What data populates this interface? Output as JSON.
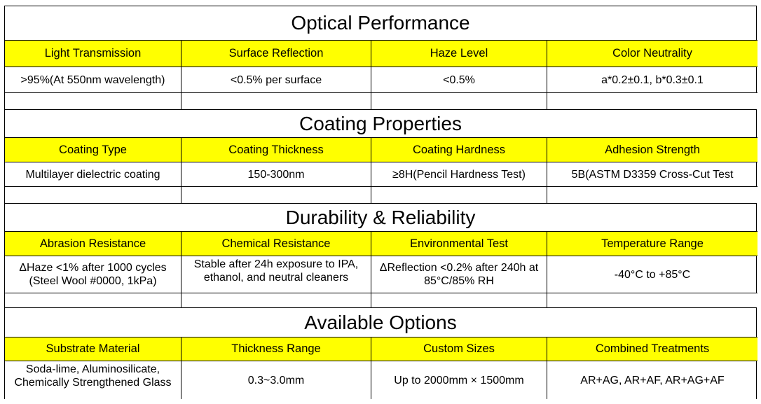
{
  "sections": [
    {
      "title": "Optical Performance",
      "headers": [
        "Light Transmission",
        "Surface Reflection",
        "Haze Level",
        "Color Neutrality"
      ],
      "values": [
        "&gt;95%(At 550nm wavelength)",
        "&lt;0.5% per surface",
        "&lt;0.5%",
        "a*0.2±0.1, b*0.3±0.1"
      ]
    },
    {
      "title": "Coating Properties",
      "headers": [
        "Coating Type",
        "Coating Thickness",
        "Coating Hardness",
        "Adhesion Strength"
      ],
      "values": [
        "Multilayer dielectric coating",
        "150-300nm",
        "≥8H(Pencil Hardness Test)",
        "5B(ASTM D3359 Cross-Cut Test"
      ]
    },
    {
      "title": "Durability &amp; Reliability",
      "headers": [
        "Abrasion Resistance",
        "Chemical Resistance",
        "Environmental Test",
        "Temperature Range"
      ],
      "values": [
        "ΔHaze &lt;1% after 1000 cycles (Steel Wool #0000, 1kPa)",
        "Stable after 24h exposure to IPA, ethanol, and neutral cleaners",
        "ΔReflection &lt;0.2% after 240h at 85°C/85% RH",
        "-40°C to +85°C"
      ]
    },
    {
      "title": "Available Options",
      "headers": [
        "Substrate Material",
        "Thickness Range",
        "Custom Sizes",
        "Combined Treatments"
      ],
      "values": [
        "Soda-lime, Aluminosilicate, Chemically Strengthened Glass",
        "0.3~3.0mm",
        "Up to 2000mm × 1500mm",
        "AR+AG, AR+AF, AR+AG+AF"
      ]
    }
  ]
}
